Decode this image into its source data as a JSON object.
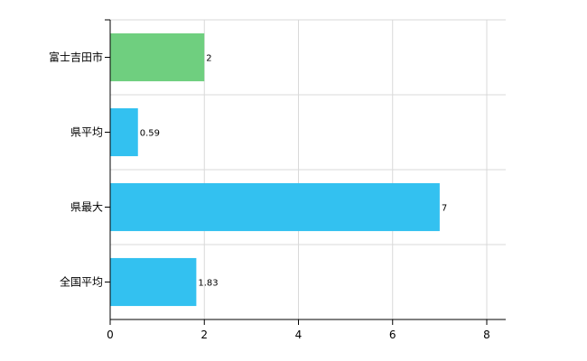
{
  "chart_data": {
    "type": "bar",
    "orientation": "horizontal",
    "categories": [
      "富士吉田市",
      "県平均",
      "県最大",
      "全国平均"
    ],
    "values": [
      2,
      0.59,
      7,
      1.83
    ],
    "data_labels": [
      "2",
      "0.59",
      "7",
      "1.83"
    ],
    "bar_colors": [
      "#6fcf7f",
      "#33c1f0",
      "#33c1f0",
      "#33c1f0"
    ],
    "title": "",
    "xlabel": "",
    "ylabel": "",
    "xlim": [
      0,
      8
    ],
    "x_ticks": [
      0,
      2,
      4,
      6,
      8
    ],
    "x_tick_labels": [
      "0",
      "2",
      "4",
      "6",
      "8"
    ],
    "grid": true,
    "legend": "none"
  }
}
